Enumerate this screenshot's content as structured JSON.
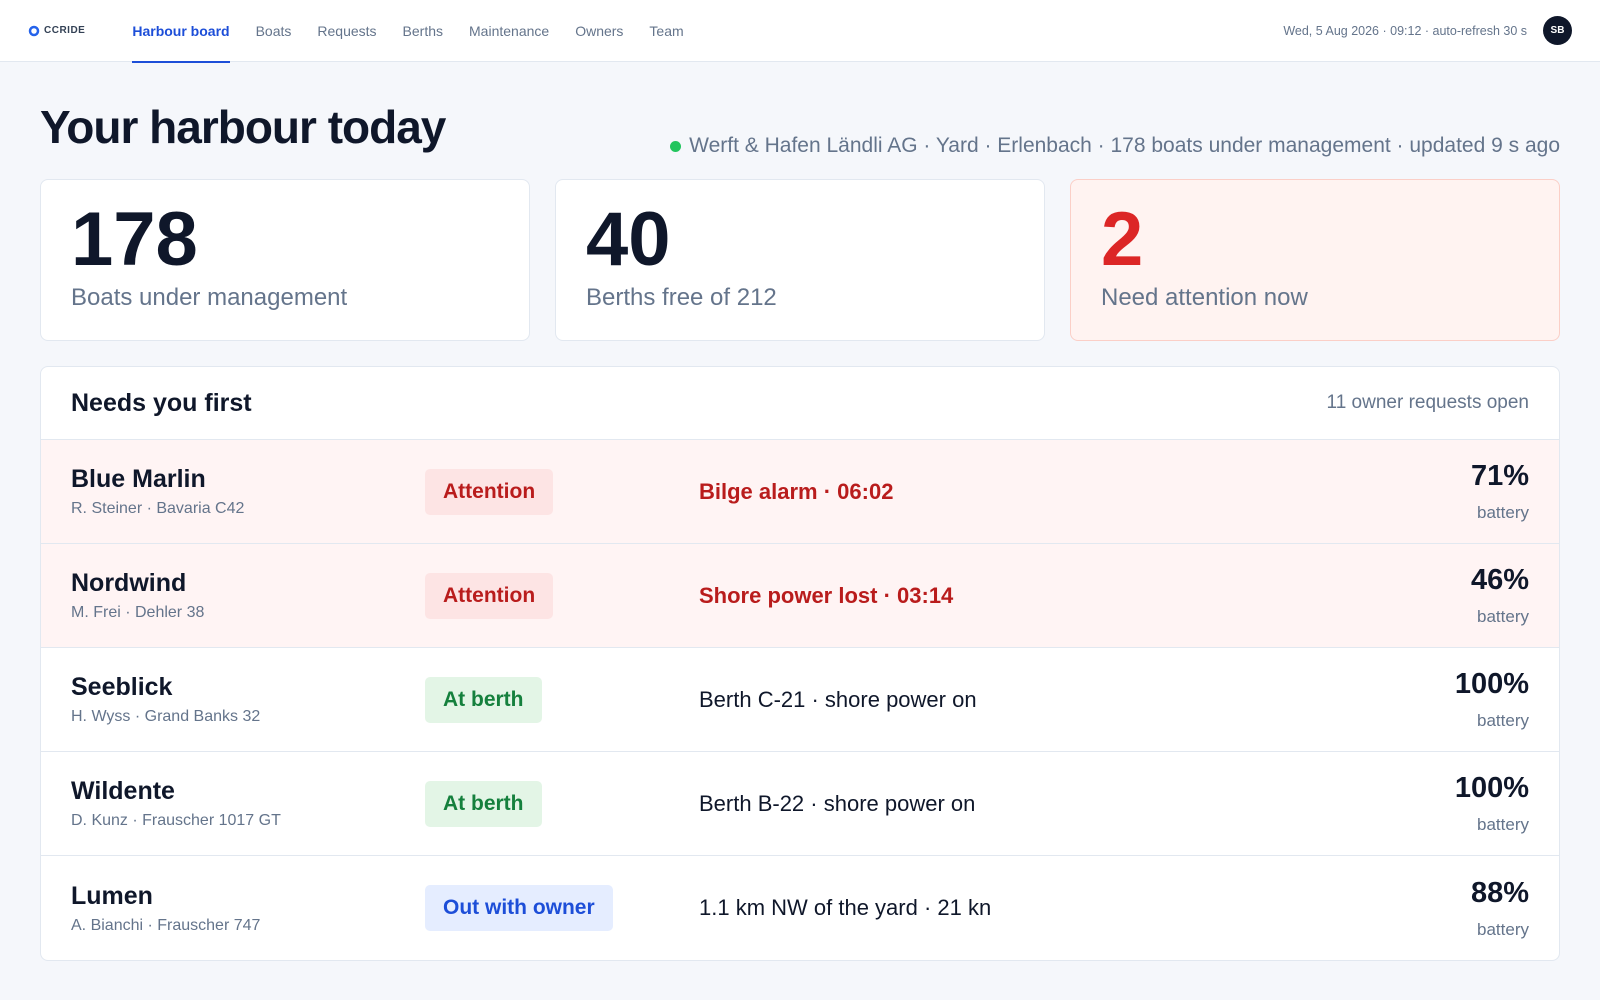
{
  "nav": {
    "logo": "CCRIDE",
    "tabs": [
      "Harbour board",
      "Boats",
      "Requests",
      "Berths",
      "Maintenance",
      "Owners",
      "Team"
    ],
    "clock": "Wed, 5 Aug 2026 · 09:12 · auto-refresh 30 s",
    "avatar": "SB"
  },
  "header": {
    "title": "Your harbour today",
    "status": "Werft & Hafen Ländli AG · Yard · Erlenbach · 178 boats under management · updated 9 s ago"
  },
  "stats": [
    {
      "value": 178,
      "label": "Boats under management"
    },
    {
      "value": 40,
      "label": "Berths free of 212"
    },
    {
      "value": 2,
      "label": "Need attention now"
    }
  ],
  "panel": {
    "title": "Needs you first",
    "meta": "11 owner requests open",
    "rows": [
      {
        "name": "Blue Marlin",
        "owner": "R. Steiner · Bavaria C42",
        "status": "Attention",
        "detail": "Bilge alarm · 06:02",
        "battery": "71%",
        "battery_label": "battery"
      },
      {
        "name": "Nordwind",
        "owner": "M. Frei · Dehler 38",
        "status": "Attention",
        "detail": "Shore power lost · 03:14",
        "battery": "46%",
        "battery_label": "battery"
      },
      {
        "name": "Seeblick",
        "owner": "H. Wyss · Grand Banks 32",
        "status": "At berth",
        "detail": "Berth C-21 · shore power on",
        "battery": "100%",
        "battery_label": "battery"
      },
      {
        "name": "Wildente",
        "owner": "D. Kunz · Frauscher 1017 GT",
        "status": "At berth",
        "detail": "Berth B-22 · shore power on",
        "battery": "100%",
        "battery_label": "battery"
      },
      {
        "name": "Lumen",
        "owner": "A. Bianchi · Frauscher 747",
        "status": "Out with owner",
        "detail": "1.1 km NW of the yard · 21 kn",
        "battery": "88%",
        "battery_label": "battery"
      }
    ]
  }
}
